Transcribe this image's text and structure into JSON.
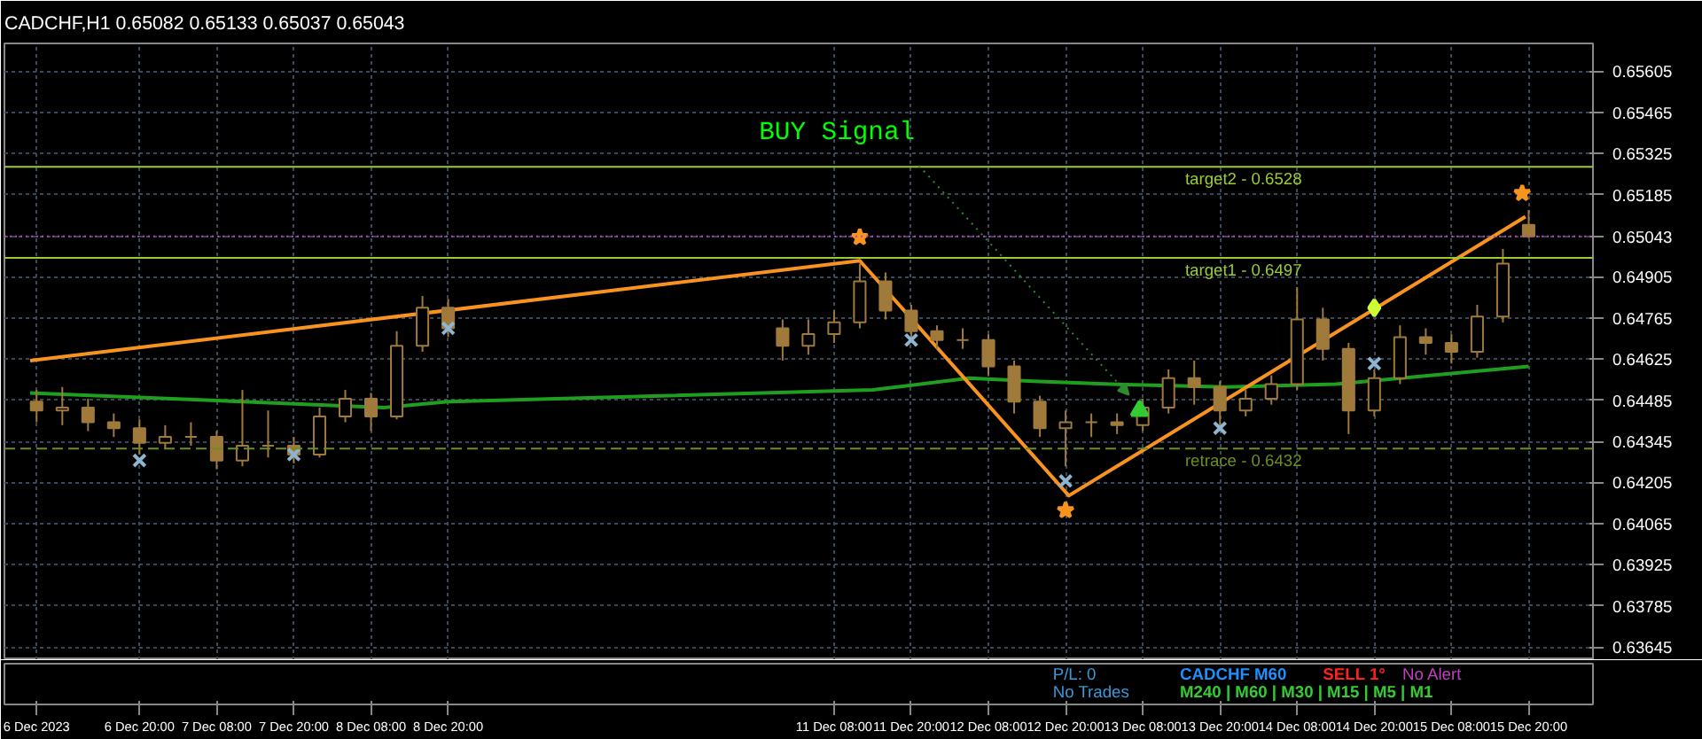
{
  "chart_data": {
    "type": "candlestick",
    "title": "CADCHF,H1  0.65082 0.65133 0.65037 0.65043",
    "xlim": [
      "2023-12-05T23:00",
      "2023-12-16T06:00"
    ],
    "ylim": [
      0.636,
      0.657
    ],
    "xticks": [
      {
        "value": "2023-12-06T04:00",
        "label": "6 Dec 2023"
      },
      {
        "value": "2023-12-06T20:00",
        "label": "6 Dec 20:00"
      },
      {
        "value": "2023-12-07T08:00",
        "label": "7 Dec 08:00"
      },
      {
        "value": "2023-12-07T20:00",
        "label": "7 Dec 20:00"
      },
      {
        "value": "2023-12-08T08:00",
        "label": "8 Dec 08:00"
      },
      {
        "value": "2023-12-08T20:00",
        "label": "8 Dec 20:00"
      },
      {
        "value": "2023-12-11T08:00",
        "label": "11 Dec 08:00"
      },
      {
        "value": "2023-12-11T20:00",
        "label": "11 Dec 20:00"
      },
      {
        "value": "2023-12-12T08:00",
        "label": "12 Dec 08:00"
      },
      {
        "value": "2023-12-12T20:00",
        "label": "12 Dec 20:00"
      },
      {
        "value": "2023-12-13T08:00",
        "label": "13 Dec 08:00"
      },
      {
        "value": "2023-12-13T20:00",
        "label": "13 Dec 20:00"
      },
      {
        "value": "2023-12-14T08:00",
        "label": "14 Dec 08:00"
      },
      {
        "value": "2023-12-14T20:00",
        "label": "14 Dec 20:00"
      },
      {
        "value": "2023-12-15T08:00",
        "label": "15 Dec 08:00"
      },
      {
        "value": "2023-12-15T20:00",
        "label": "15 Dec 20:00"
      }
    ],
    "yticks": [
      0.63645,
      0.63785,
      0.63925,
      0.64065,
      0.64205,
      0.64345,
      0.64485,
      0.64625,
      0.64765,
      0.64905,
      0.65043,
      0.65185,
      0.65325,
      0.65465,
      0.65605
    ],
    "grid": true,
    "series": [
      {
        "color": "#a07a3a",
        "x": [
          "2023-12-06T04:00",
          "2023-12-06T08:00",
          "2023-12-06T12:00",
          "2023-12-06T16:00",
          "2023-12-06T20:00",
          "2023-12-07T00:00",
          "2023-12-07T04:00",
          "2023-12-07T08:00",
          "2023-12-07T12:00",
          "2023-12-07T16:00",
          "2023-12-07T20:00",
          "2023-12-08T00:00",
          "2023-12-08T04:00",
          "2023-12-08T08:00",
          "2023-12-08T12:00",
          "2023-12-08T16:00",
          "2023-12-08T20:00",
          "2023-12-11T00:00",
          "2023-12-11T04:00",
          "2023-12-11T08:00",
          "2023-12-11T12:00",
          "2023-12-11T16:00",
          "2023-12-11T20:00",
          "2023-12-12T00:00",
          "2023-12-12T04:00",
          "2023-12-12T08:00",
          "2023-12-12T12:00",
          "2023-12-12T16:00",
          "2023-12-12T20:00",
          "2023-12-13T00:00",
          "2023-12-13T04:00",
          "2023-12-13T08:00",
          "2023-12-13T12:00",
          "2023-12-13T16:00",
          "2023-12-13T20:00",
          "2023-12-14T00:00",
          "2023-12-14T04:00",
          "2023-12-14T08:00",
          "2023-12-14T12:00",
          "2023-12-14T16:00",
          "2023-12-14T20:00",
          "2023-12-15T00:00",
          "2023-12-15T04:00",
          "2023-12-15T08:00",
          "2023-12-15T12:00",
          "2023-12-15T16:00",
          "2023-12-15T20:00"
        ],
        "ohlc": [
          [
            0.6448,
            0.6452,
            0.6441,
            0.6445
          ],
          [
            0.6445,
            0.6453,
            0.644,
            0.6446
          ],
          [
            0.6446,
            0.6449,
            0.6438,
            0.6441
          ],
          [
            0.6441,
            0.6444,
            0.6436,
            0.6439
          ],
          [
            0.6439,
            0.6442,
            0.643,
            0.6434
          ],
          [
            0.6434,
            0.644,
            0.6432,
            0.6436
          ],
          [
            0.6436,
            0.6441,
            0.6433,
            0.6436
          ],
          [
            0.6436,
            0.6438,
            0.6425,
            0.6428
          ],
          [
            0.6428,
            0.6452,
            0.6426,
            0.6433
          ],
          [
            0.6433,
            0.6445,
            0.6429,
            0.6433
          ],
          [
            0.6433,
            0.6436,
            0.6427,
            0.643
          ],
          [
            0.643,
            0.6446,
            0.6429,
            0.6443
          ],
          [
            0.6443,
            0.6452,
            0.6441,
            0.6449
          ],
          [
            0.6449,
            0.6451,
            0.6438,
            0.6443
          ],
          [
            0.6443,
            0.6472,
            0.6442,
            0.6467
          ],
          [
            0.6467,
            0.6484,
            0.6465,
            0.648
          ],
          [
            0.648,
            0.6483,
            0.647,
            0.6473
          ],
          [
            0.6473,
            0.6476,
            0.6462,
            0.6467
          ],
          [
            0.6467,
            0.6476,
            0.6464,
            0.6471
          ],
          [
            0.6471,
            0.6479,
            0.6468,
            0.6475
          ],
          [
            0.6475,
            0.6495,
            0.6473,
            0.6489
          ],
          [
            0.6489,
            0.6492,
            0.6476,
            0.6479
          ],
          [
            0.6479,
            0.6481,
            0.6469,
            0.6472
          ],
          [
            0.6472,
            0.6474,
            0.6466,
            0.6469
          ],
          [
            0.6469,
            0.6473,
            0.6466,
            0.6469
          ],
          [
            0.6469,
            0.6471,
            0.6457,
            0.646
          ],
          [
            0.646,
            0.6462,
            0.6444,
            0.6448
          ],
          [
            0.6448,
            0.645,
            0.6436,
            0.6439
          ],
          [
            0.6439,
            0.6445,
            0.6426,
            0.6441
          ],
          [
            0.6441,
            0.6444,
            0.6436,
            0.6441
          ],
          [
            0.6441,
            0.6444,
            0.6437,
            0.644
          ],
          [
            0.644,
            0.6449,
            0.6438,
            0.6446
          ],
          [
            0.6446,
            0.6459,
            0.6444,
            0.6456
          ],
          [
            0.6456,
            0.6462,
            0.6447,
            0.6453
          ],
          [
            0.6453,
            0.6455,
            0.6438,
            0.6445
          ],
          [
            0.6445,
            0.6452,
            0.6443,
            0.6449
          ],
          [
            0.6449,
            0.6457,
            0.6447,
            0.6454
          ],
          [
            0.6454,
            0.6487,
            0.6452,
            0.6476
          ],
          [
            0.6476,
            0.648,
            0.6462,
            0.6466
          ],
          [
            0.6466,
            0.6468,
            0.6437,
            0.6445
          ],
          [
            0.6445,
            0.6459,
            0.6443,
            0.6456
          ],
          [
            0.6456,
            0.6474,
            0.6454,
            0.647
          ],
          [
            0.647,
            0.6473,
            0.6464,
            0.6468
          ],
          [
            0.6468,
            0.6471,
            0.6461,
            0.6465
          ],
          [
            0.6465,
            0.6481,
            0.6463,
            0.6477
          ],
          [
            0.6477,
            0.65,
            0.6475,
            0.6495
          ],
          [
            0.65082,
            0.65133,
            0.65037,
            0.65043
          ]
        ]
      },
      {
        "type": "line",
        "color": "#1f9e1f",
        "x": [
          "2023-12-06T03:00",
          "2023-12-07T12:00",
          "2023-12-08T10:00",
          "2023-12-08T20:00",
          "2023-12-11T14:00",
          "2023-12-12T05:00",
          "2023-12-12T15:00",
          "2023-12-13T03:00",
          "2023-12-13T21:00",
          "2023-12-14T14:00",
          "2023-12-15T05:00",
          "2023-12-15T20:00"
        ],
        "values": [
          0.6451,
          0.6448,
          0.6446,
          0.6448,
          0.6452,
          0.6456,
          0.6455,
          0.6454,
          0.6453,
          0.6454,
          0.6457,
          0.646
        ]
      },
      {
        "type": "line",
        "color": "#f7931e",
        "x": [
          "2023-12-06T03:00",
          "2023-12-11T12:00",
          "2023-12-12T20:30",
          "2023-12-15T19:30"
        ],
        "values": [
          0.6462,
          0.6496,
          0.6416,
          0.6511
        ]
      },
      {
        "type": "scatter",
        "color": "#8fb4d0",
        "marker": "cross",
        "x": [
          "2023-12-06T20:00",
          "2023-12-07T20:00",
          "2023-12-08T20:00",
          "2023-12-11T20:00",
          "2023-12-12T20:00",
          "2023-12-13T20:00",
          "2023-12-14T20:00"
        ],
        "values": [
          0.6428,
          0.643,
          0.6473,
          0.6469,
          0.6421,
          0.6439,
          0.6461
        ]
      },
      {
        "type": "scatter",
        "color": "#f7931e",
        "marker": "star",
        "x": [
          "2023-12-11T12:00",
          "2023-12-12T20:00",
          "2023-12-15T19:00"
        ],
        "values": [
          0.6504,
          0.6411,
          0.6519
        ]
      },
      {
        "type": "scatter",
        "color": "#33cc33",
        "marker": "triangle",
        "x": [
          "2023-12-13T07:30"
        ],
        "values": [
          0.6445
        ]
      },
      {
        "type": "scatter",
        "color": "#ccff33",
        "marker": "diamond",
        "x": [
          "2023-12-14T20:00"
        ],
        "values": [
          0.648
        ]
      }
    ],
    "ref_lines": [
      {
        "axis": "y",
        "value": 0.6528,
        "label": "target2 - 0.6528",
        "color": "#9acd32"
      },
      {
        "axis": "y",
        "value": 0.6497,
        "label": "target1 - 0.6497",
        "color": "#9acd32"
      },
      {
        "axis": "y",
        "value": 0.6432,
        "label": "retrace - 0.6432",
        "color": "#6b8e23",
        "line_style": "dashed"
      },
      {
        "axis": "y",
        "value": 0.65043,
        "color": "#c040c0",
        "line_style": "dotted"
      }
    ],
    "annotations": [
      "BUY Signal",
      "P/L: 0",
      "No Trades",
      "CADCHF M60",
      "SELL 1°",
      "No Alert",
      "M240 | M60 | M30 | M15 | M5 | M1"
    ]
  }
}
